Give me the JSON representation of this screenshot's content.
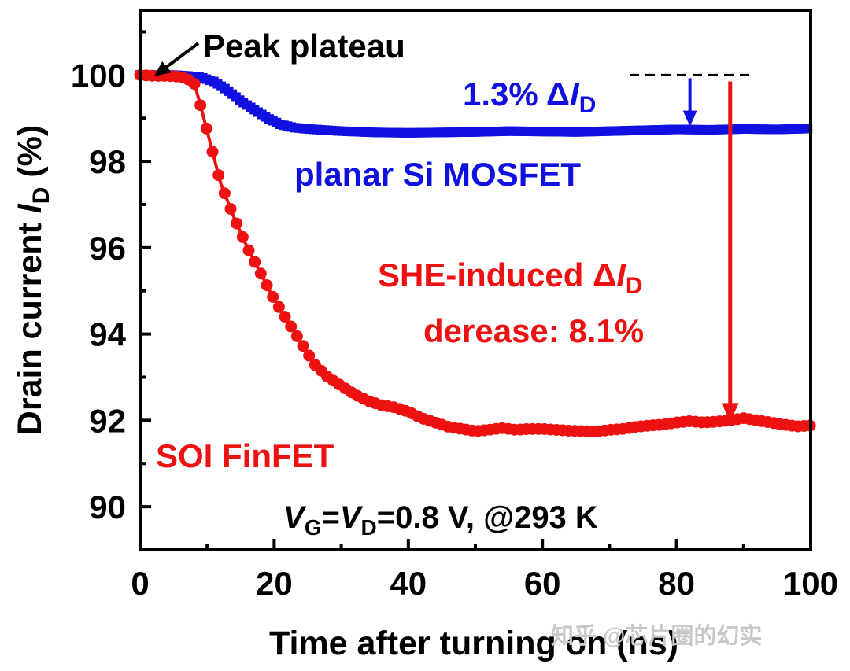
{
  "chart_data": {
    "type": "line",
    "xlabel": "Time after turning on (ns)",
    "ylabel": {
      "main": "Drain current ",
      "italic": "I",
      "sub": "D",
      "unit": " (%)"
    },
    "xlim": [
      0,
      100
    ],
    "ylim": [
      89,
      101.5
    ],
    "xticks": [
      "0",
      "20",
      "40",
      "60",
      "80",
      "100"
    ],
    "yticks": [
      "90",
      "92",
      "94",
      "96",
      "98",
      "100"
    ],
    "series": [
      {
        "name": "planar Si MOSFET",
        "color": "#1010e0",
        "marker": "square",
        "x": [
          0,
          3,
          5,
          7,
          9,
          11,
          13,
          15,
          17,
          19,
          21,
          23,
          25,
          30,
          35,
          40,
          45,
          50,
          55,
          60,
          65,
          70,
          75,
          80,
          85,
          90,
          95,
          100
        ],
        "y": [
          100.0,
          100.0,
          100.0,
          99.98,
          99.95,
          99.85,
          99.65,
          99.4,
          99.2,
          99.0,
          98.85,
          98.78,
          98.75,
          98.7,
          98.67,
          98.66,
          98.67,
          98.68,
          98.7,
          98.69,
          98.68,
          98.7,
          98.72,
          98.74,
          98.73,
          98.75,
          98.74,
          98.76
        ]
      },
      {
        "name": "SOI FinFET",
        "color": "#ee1111",
        "marker": "circle",
        "x": [
          0,
          2,
          4,
          6,
          8,
          9,
          10,
          11,
          12,
          14,
          16,
          18,
          20,
          22,
          24,
          26,
          28,
          30,
          32,
          34,
          36,
          38,
          40,
          42,
          44,
          46,
          48,
          50,
          52,
          54,
          56,
          58,
          60,
          62,
          64,
          66,
          68,
          70,
          72,
          74,
          76,
          78,
          80,
          82,
          84,
          86,
          88,
          90,
          92,
          94,
          96,
          98,
          100
        ],
        "y": [
          100.0,
          99.98,
          99.98,
          99.96,
          99.85,
          99.3,
          98.7,
          98.1,
          97.5,
          96.7,
          96.0,
          95.4,
          94.8,
          94.3,
          93.8,
          93.3,
          93.0,
          92.8,
          92.6,
          92.45,
          92.35,
          92.3,
          92.2,
          92.05,
          91.95,
          91.85,
          91.8,
          91.75,
          91.78,
          91.82,
          91.78,
          91.8,
          91.8,
          91.78,
          91.76,
          91.75,
          91.74,
          91.78,
          91.8,
          91.85,
          91.88,
          91.9,
          91.95,
          91.98,
          91.95,
          91.97,
          92.0,
          92.05,
          92.0,
          91.95,
          91.9,
          91.86,
          91.88
        ]
      }
    ],
    "annotations": {
      "peak_plateau": "Peak plateau",
      "mosfet_delta_prefix": "1.3% Δ",
      "mosfet_delta_italic": "I",
      "mosfet_delta_sub": "D",
      "mosfet_label": "planar Si MOSFET",
      "she_line1_prefix": "SHE-induced Δ",
      "she_line1_italic": "I",
      "she_line1_sub": "D",
      "she_line2": "derease: 8.1%",
      "finfet_label": "SOI FinFET",
      "conditions": {
        "v": "V",
        "g": "G",
        "eq1": "=",
        "d": "D",
        "rest": "=0.8 V, @293 K"
      }
    },
    "reference_line_y": 100.0,
    "mosfet_drop_arrow": {
      "x": 82,
      "from": 100.0,
      "to": 98.7
    },
    "she_drop_arrow": {
      "x": 88,
      "from": 99.85,
      "to": 92.0
    },
    "watermark": "知乎 @芯片圈的幻实"
  }
}
